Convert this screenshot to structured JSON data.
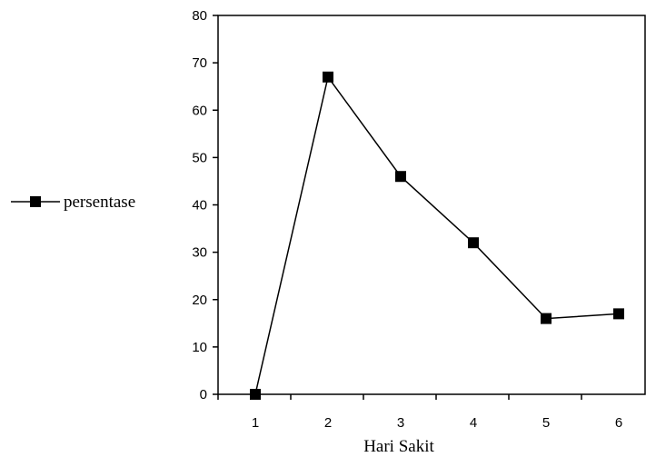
{
  "chart_data": {
    "type": "line",
    "x": [
      1,
      2,
      3,
      4,
      5,
      6
    ],
    "series": [
      {
        "name": "persentase",
        "values": [
          0,
          67,
          46,
          32,
          16,
          17
        ]
      }
    ],
    "xlabel": "Hari Sakit",
    "ylabel": "",
    "xticks": [
      "1",
      "2",
      "3",
      "4",
      "5",
      "6"
    ],
    "yticks": [
      0,
      10,
      20,
      30,
      40,
      50,
      60,
      70,
      80
    ],
    "ylim": [
      0,
      80
    ],
    "grid": false,
    "legend_position": "left",
    "marker": "square",
    "line_color": "#000000"
  }
}
